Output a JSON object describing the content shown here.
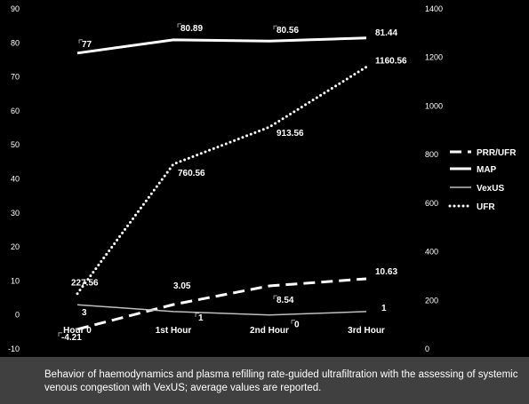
{
  "chart_data": {
    "type": "line",
    "categories": [
      "Hour 0",
      "1st Hour",
      "2nd Hour",
      "3rd Hour"
    ],
    "y_left": {
      "min": -10,
      "max": 90,
      "step": 10
    },
    "y_right": {
      "min": 0,
      "max": 1400,
      "step": 200
    },
    "grid": false,
    "legend_position": "right",
    "series": [
      {
        "name": "PRR/UFR",
        "axis": "left",
        "style": "dashed",
        "width": 3,
        "values": [
          -4.21,
          3.05,
          8.54,
          10.63
        ],
        "labels": [
          "-4.21",
          "3.05",
          "8.54",
          "10.63"
        ]
      },
      {
        "name": "MAP",
        "axis": "left",
        "style": "solid",
        "width": 3,
        "values": [
          77,
          80.89,
          80.56,
          81.44
        ],
        "labels": [
          "77",
          "80.89",
          "80.56",
          "81.44"
        ]
      },
      {
        "name": "VexUS",
        "axis": "left",
        "style": "solid",
        "width": 1.5,
        "color": "#bfbfbf",
        "values": [
          3,
          1,
          0,
          1
        ],
        "labels": [
          "3",
          "1",
          "0",
          "1"
        ]
      },
      {
        "name": "UFR",
        "axis": "right",
        "style": "dotted",
        "width": 3,
        "values": [
          227.56,
          760.56,
          913.56,
          1160.56
        ],
        "labels": [
          "227.56",
          "760.56",
          "913.56",
          "1160.56"
        ]
      }
    ]
  },
  "caption": "Behavior of haemodynamics and plasma refilling rate-guided ultrafiltration with the assessing of systemic venous congestion with VexUS; average values are reported."
}
